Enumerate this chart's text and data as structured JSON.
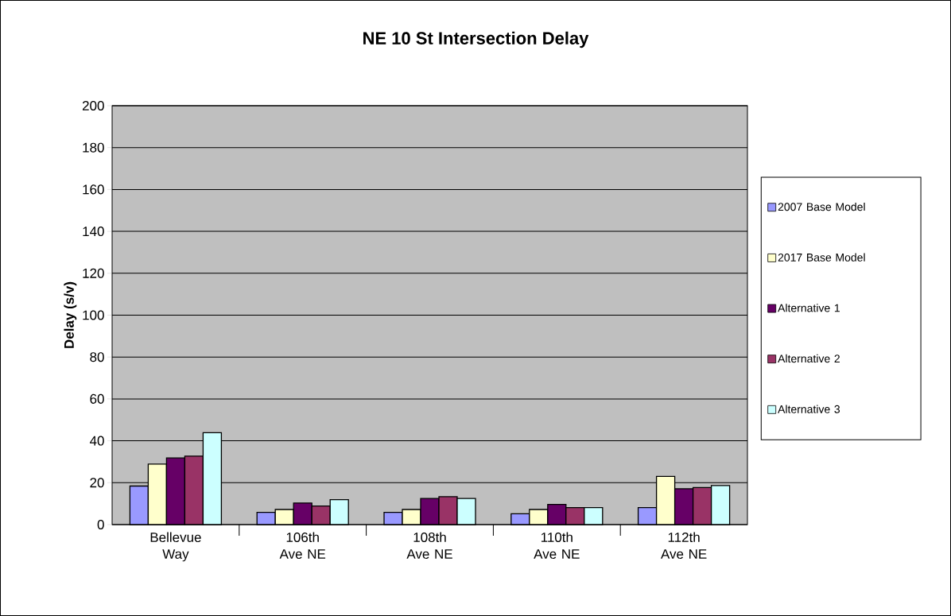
{
  "chart_data": {
    "type": "bar",
    "title": "NE 10 St Intersection Delay",
    "ylabel": "Delay (s/v)",
    "categories": [
      "Bellevue Way",
      "106th Ave NE",
      "108th Ave NE",
      "110th Ave NE",
      "112th Ave NE"
    ],
    "series": [
      {
        "name": "2007 Base Model",
        "color": "#9999ff",
        "values": [
          18.4,
          5.8,
          5.8,
          5.2,
          8.1
        ]
      },
      {
        "name": "2017 Base Model",
        "color": "#ffffcc",
        "values": [
          28.9,
          7.2,
          7.2,
          7.2,
          23.0
        ]
      },
      {
        "name": "Alternative 1",
        "color": "#660066",
        "values": [
          31.8,
          10.3,
          12.5,
          9.6,
          17.1
        ]
      },
      {
        "name": "Alternative 2",
        "color": "#993366",
        "values": [
          32.7,
          8.9,
          13.3,
          8.1,
          17.7
        ]
      },
      {
        "name": "Alternative 3",
        "color": "#ccffff",
        "values": [
          43.9,
          11.9,
          12.5,
          8.1,
          18.6
        ]
      }
    ],
    "ylim": [
      0,
      200
    ],
    "yticks": [
      0,
      20,
      40,
      60,
      80,
      100,
      120,
      140,
      160,
      180,
      200
    ],
    "grid": "y",
    "legend": "right"
  }
}
